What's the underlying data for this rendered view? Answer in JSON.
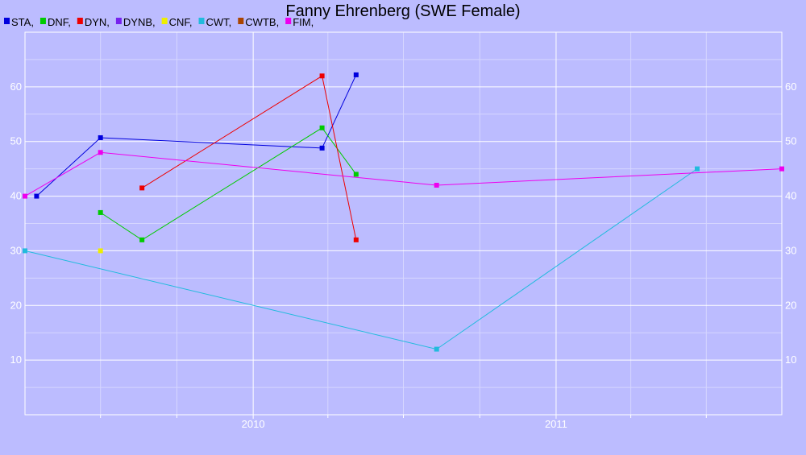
{
  "chart_data": {
    "type": "line",
    "title": "Fanny Ehrenberg (SWE Female)",
    "xlabel": "",
    "ylabel": "",
    "x_axis": {
      "type": "date",
      "range": [
        "2009-04-01",
        "2011-09-30"
      ],
      "major_ticks": [
        {
          "date": "2010-01-01",
          "label": "2010"
        },
        {
          "date": "2011-01-01",
          "label": "2011"
        }
      ],
      "minor_ticks": [
        "2009-07-01",
        "2009-10-01",
        "2010-04-01",
        "2010-07-01",
        "2010-10-01",
        "2011-04-01",
        "2011-07-01"
      ]
    },
    "y_axis": {
      "range": [
        0,
        70
      ],
      "ticks": [
        10,
        20,
        30,
        40,
        50,
        60
      ],
      "minor_ticks": [
        5,
        15,
        25,
        35,
        45,
        55,
        65
      ],
      "labels_both_sides": true
    },
    "grid": true,
    "legend_position": "top-left",
    "background_color": "#bcbcff",
    "series": [
      {
        "name": "STA,",
        "color": "#0000dd",
        "points": [
          {
            "x": "2009-04-15",
            "y": 40
          },
          {
            "x": "2009-07-01",
            "y": 50.7
          },
          {
            "x": "2010-03-25",
            "y": 48.8
          },
          {
            "x": "2010-05-05",
            "y": 62.2
          }
        ]
      },
      {
        "name": "DNF,",
        "color": "#00cc00",
        "points": [
          {
            "x": "2009-07-01",
            "y": 37
          },
          {
            "x": "2009-08-20",
            "y": 32
          },
          {
            "x": "2010-03-25",
            "y": 52.5
          },
          {
            "x": "2010-05-05",
            "y": 44
          }
        ]
      },
      {
        "name": "DYN,",
        "color": "#ee0000",
        "points": [
          {
            "x": "2009-08-20",
            "y": 41.5
          },
          {
            "x": "2010-03-25",
            "y": 62
          },
          {
            "x": "2010-05-05",
            "y": 32
          }
        ]
      },
      {
        "name": "DYNB,",
        "color": "#7722ee",
        "points": []
      },
      {
        "name": "CNF,",
        "color": "#eeee00",
        "points": [
          {
            "x": "2009-07-01",
            "y": 30
          }
        ]
      },
      {
        "name": "CWT,",
        "color": "#22bbdd",
        "points": [
          {
            "x": "2009-04-01",
            "y": 30
          },
          {
            "x": "2010-08-10",
            "y": 12
          },
          {
            "x": "2011-06-20",
            "y": 45
          }
        ]
      },
      {
        "name": "CWTB,",
        "color": "#aa4400",
        "points": []
      },
      {
        "name": "FIM,",
        "color": "#ee00ee",
        "points": [
          {
            "x": "2009-04-01",
            "y": 40
          },
          {
            "x": "2009-07-01",
            "y": 48
          },
          {
            "x": "2010-08-10",
            "y": 42
          },
          {
            "x": "2011-09-30",
            "y": 45
          }
        ]
      }
    ]
  }
}
